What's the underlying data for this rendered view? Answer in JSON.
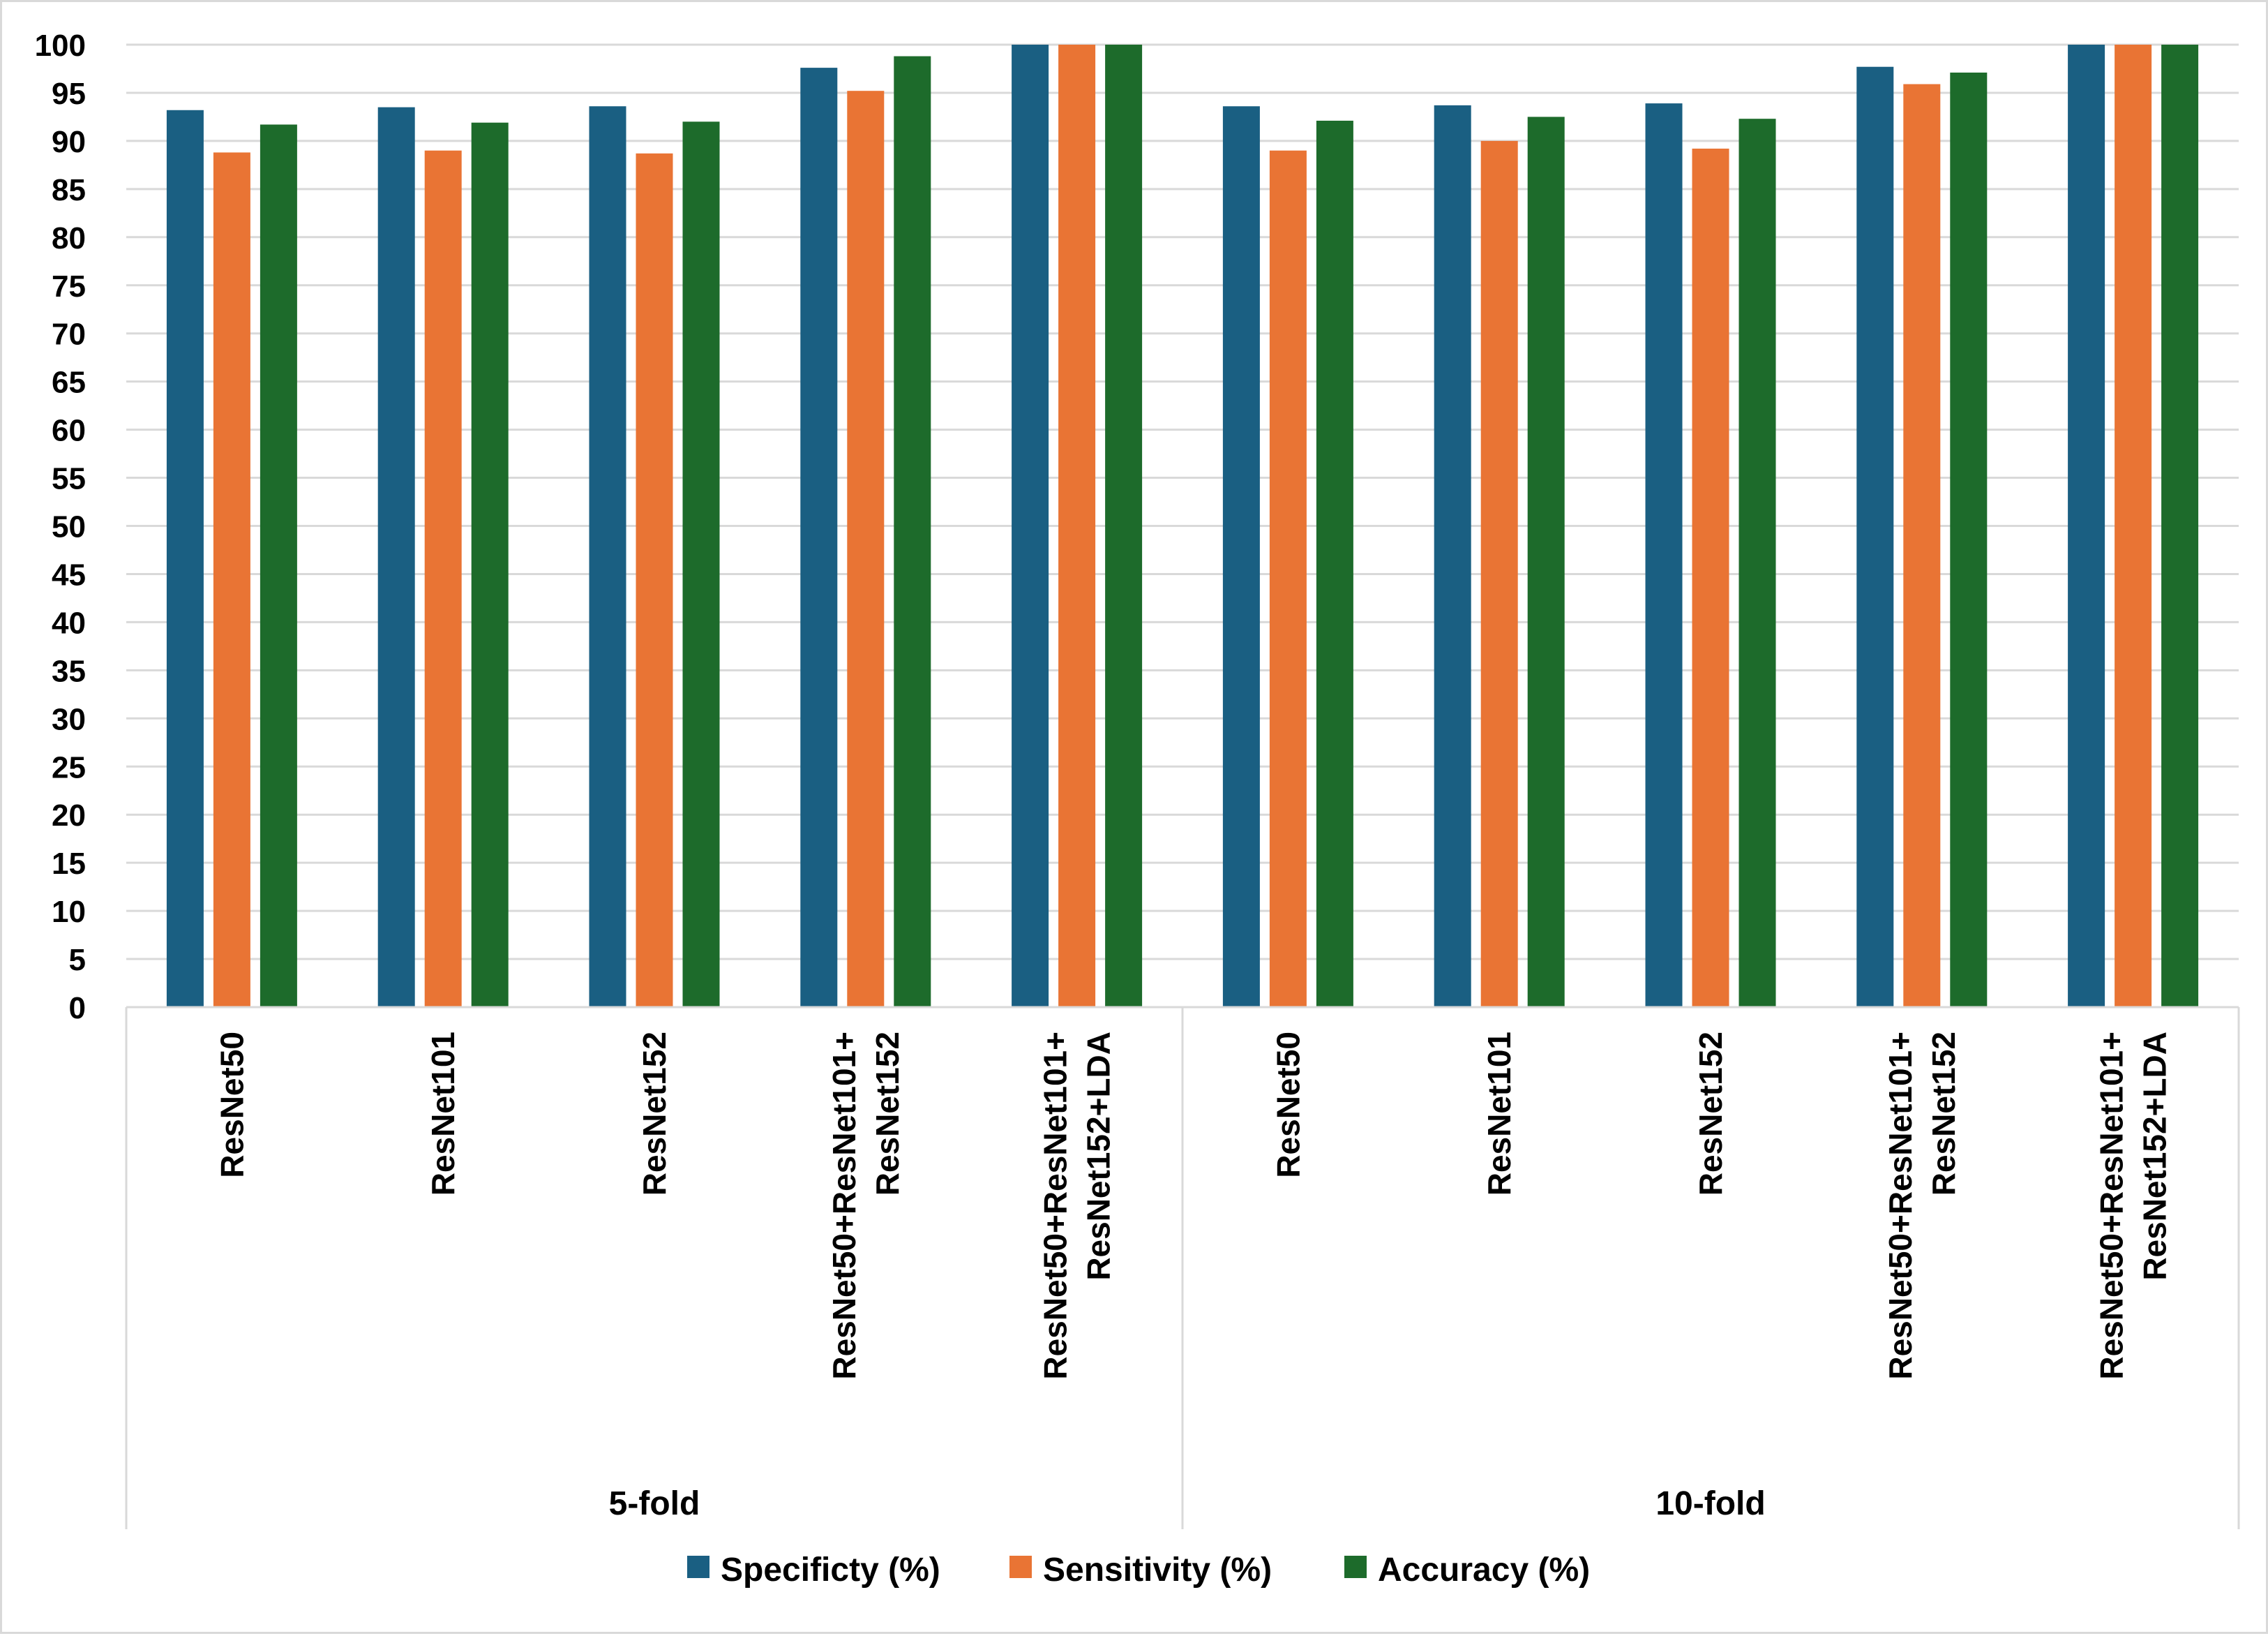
{
  "chart_data": {
    "type": "bar",
    "title": "",
    "xlabel": "",
    "ylabel": "",
    "ylim": [
      0,
      100
    ],
    "ytick_step": 5,
    "grid": true,
    "legend_position": "bottom",
    "groups": [
      {
        "label": "5-fold",
        "categories": [
          "ResNet50",
          "ResNet101",
          "ResNet152",
          "ResNet50+ResNet101+|ResNet152",
          "ResNet50+ResNet101+|ResNet152+LDA"
        ]
      },
      {
        "label": "10-fold",
        "categories": [
          "ResNet50",
          "ResNet101",
          "ResNet152",
          "ResNet50+ResNet101+|ResNet152",
          "ResNet50+ResNet101+|ResNet152+LDA"
        ]
      }
    ],
    "series": [
      {
        "name": "Specificty (%)",
        "color": "#1a5f82",
        "values": [
          93.2,
          93.5,
          93.6,
          97.6,
          100,
          93.6,
          93.7,
          93.9,
          97.7,
          100
        ]
      },
      {
        "name": "Sensitivity (%)",
        "color": "#e97434",
        "values": [
          88.8,
          89.0,
          88.7,
          95.2,
          100,
          89.0,
          90.0,
          89.2,
          95.9,
          100
        ]
      },
      {
        "name": "Accuracy (%)",
        "color": "#1d6b2b",
        "values": [
          91.7,
          91.9,
          92.0,
          98.8,
          100,
          92.1,
          92.5,
          92.3,
          97.1,
          100
        ]
      }
    ]
  }
}
